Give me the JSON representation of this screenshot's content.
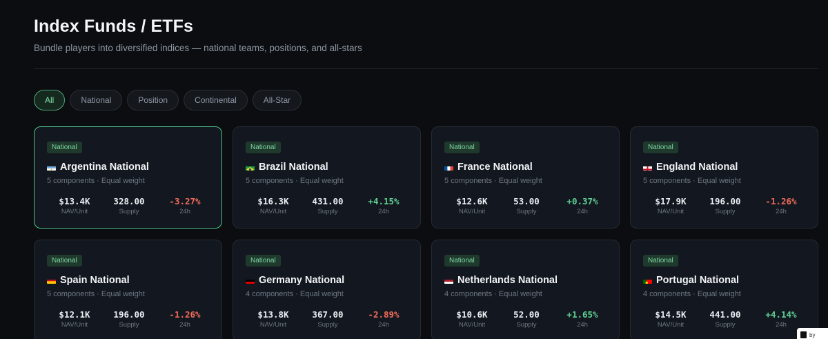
{
  "header": {
    "title": "Index Funds / ETFs",
    "subtitle": "Bundle players into diversified indices — national teams, positions, and all-stars"
  },
  "filters": [
    {
      "label": "All",
      "active": true
    },
    {
      "label": "National",
      "active": false
    },
    {
      "label": "Position",
      "active": false
    },
    {
      "label": "Continental",
      "active": false
    },
    {
      "label": "All-Star",
      "active": false
    }
  ],
  "stat_labels": {
    "nav": "NAV/Unit",
    "supply": "Supply",
    "change": "24h"
  },
  "cards": [
    {
      "badge": "National",
      "flag": "argentina",
      "name": "Argentina National",
      "meta": "5 components · Equal weight",
      "nav": "$13.4K",
      "supply": "328.00",
      "change": "-3.27%",
      "direction": "neg",
      "selected": true
    },
    {
      "badge": "National",
      "flag": "brazil",
      "name": "Brazil National",
      "meta": "5 components · Equal weight",
      "nav": "$16.3K",
      "supply": "431.00",
      "change": "+4.15%",
      "direction": "pos",
      "selected": false
    },
    {
      "badge": "National",
      "flag": "france",
      "name": "France National",
      "meta": "5 components · Equal weight",
      "nav": "$12.6K",
      "supply": "53.00",
      "change": "+0.37%",
      "direction": "pos",
      "selected": false
    },
    {
      "badge": "National",
      "flag": "england",
      "name": "England National",
      "meta": "5 components · Equal weight",
      "nav": "$17.9K",
      "supply": "196.00",
      "change": "-1.26%",
      "direction": "neg",
      "selected": false
    },
    {
      "badge": "National",
      "flag": "spain",
      "name": "Spain National",
      "meta": "5 components · Equal weight",
      "nav": "$12.1K",
      "supply": "196.00",
      "change": "-1.26%",
      "direction": "neg",
      "selected": false
    },
    {
      "badge": "National",
      "flag": "germany",
      "name": "Germany National",
      "meta": "4 components · Equal weight",
      "nav": "$13.8K",
      "supply": "367.00",
      "change": "-2.89%",
      "direction": "neg",
      "selected": false
    },
    {
      "badge": "National",
      "flag": "netherlands",
      "name": "Netherlands National",
      "meta": "4 components · Equal weight",
      "nav": "$10.6K",
      "supply": "52.00",
      "change": "+1.65%",
      "direction": "pos",
      "selected": false
    },
    {
      "badge": "National",
      "flag": "portugal",
      "name": "Portugal National",
      "meta": "4 components · Equal weight",
      "nav": "$14.5K",
      "supply": "441.00",
      "change": "+4.14%",
      "direction": "pos",
      "selected": false
    }
  ],
  "corner_widget": {
    "text": "by"
  }
}
